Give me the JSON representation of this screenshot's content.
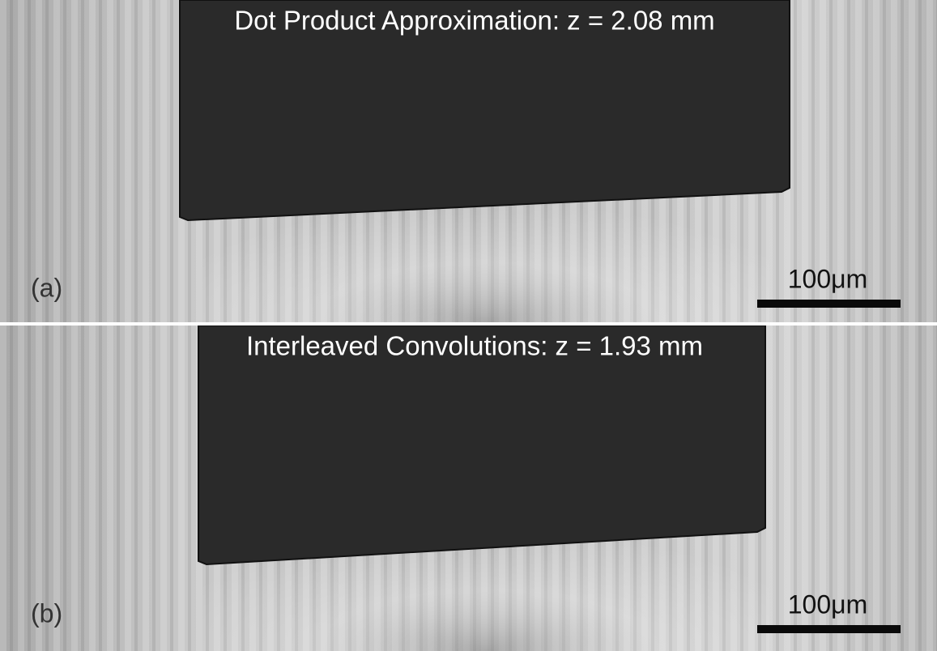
{
  "panels": [
    {
      "title": "Dot Product Approximation: z = 2.08 mm",
      "label": "(a)",
      "scale_bar": "100μm"
    },
    {
      "title": "Interleaved Convolutions: z = 1.93 mm",
      "label": "(b)",
      "scale_bar": "100μm"
    }
  ]
}
